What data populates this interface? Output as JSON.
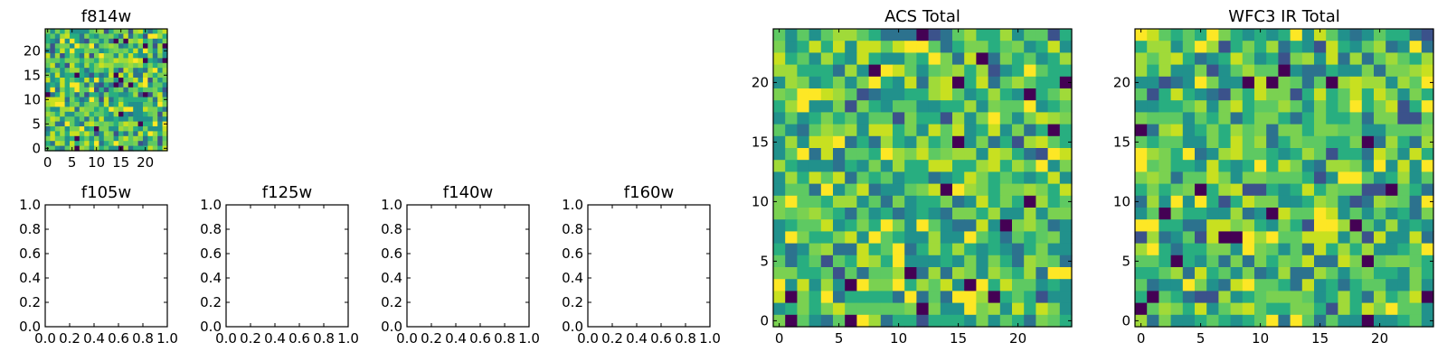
{
  "chart_data": [
    {
      "type": "heatmap",
      "title": "f814w",
      "grid_size": 25,
      "xlim": [
        -0.5,
        24.5
      ],
      "ylim": [
        -0.5,
        24.5
      ],
      "xticks": [
        0,
        5,
        10,
        15,
        20
      ],
      "yticks": [
        0,
        5,
        10,
        15,
        20
      ],
      "colormap": "viridis",
      "values": "random noise (per-pixel values not individually labeled)"
    },
    {
      "type": "heatmap",
      "title": "f105w",
      "xlim": [
        0,
        1
      ],
      "ylim": [
        0,
        1
      ],
      "xticks": [
        "0.0",
        "0.2",
        "0.4",
        "0.6",
        "0.8",
        "1.0"
      ],
      "yticks": [
        "0.0",
        "0.2",
        "0.4",
        "0.6",
        "0.8",
        "1.0"
      ],
      "values": []
    },
    {
      "type": "heatmap",
      "title": "f125w",
      "xlim": [
        0,
        1
      ],
      "ylim": [
        0,
        1
      ],
      "xticks": [
        "0.0",
        "0.2",
        "0.4",
        "0.6",
        "0.8",
        "1.0"
      ],
      "yticks": [
        "0.0",
        "0.2",
        "0.4",
        "0.6",
        "0.8",
        "1.0"
      ],
      "values": []
    },
    {
      "type": "heatmap",
      "title": "f140w",
      "xlim": [
        0,
        1
      ],
      "ylim": [
        0,
        1
      ],
      "xticks": [
        "0.0",
        "0.2",
        "0.4",
        "0.6",
        "0.8",
        "1.0"
      ],
      "yticks": [
        "0.0",
        "0.2",
        "0.4",
        "0.6",
        "0.8",
        "1.0"
      ],
      "values": []
    },
    {
      "type": "heatmap",
      "title": "f160w",
      "xlim": [
        0,
        1
      ],
      "ylim": [
        0,
        1
      ],
      "xticks": [
        "0.0",
        "0.2",
        "0.4",
        "0.6",
        "0.8",
        "1.0"
      ],
      "yticks": [
        "0.0",
        "0.2",
        "0.4",
        "0.6",
        "0.8",
        "1.0"
      ],
      "values": []
    },
    {
      "type": "heatmap",
      "title": "ACS Total",
      "grid_size": 25,
      "xlim": [
        -0.5,
        24.5
      ],
      "ylim": [
        -0.5,
        24.5
      ],
      "xticks": [
        0,
        5,
        10,
        15,
        20
      ],
      "yticks": [
        0,
        5,
        10,
        15,
        20
      ],
      "colormap": "viridis",
      "values": "random noise (per-pixel values not individually labeled)"
    },
    {
      "type": "heatmap",
      "title": "WFC3 IR Total",
      "grid_size": 25,
      "xlim": [
        -0.5,
        24.5
      ],
      "ylim": [
        -0.5,
        24.5
      ],
      "xticks": [
        0,
        5,
        10,
        15,
        20
      ],
      "yticks": [
        0,
        5,
        10,
        15,
        20
      ],
      "colormap": "viridis",
      "values": "random noise (per-pixel values not individually labeled)"
    }
  ],
  "colors": {
    "viridis_dark": "#440154",
    "viridis_blue": "#3b528b",
    "viridis_teal": "#21918c",
    "viridis_green": "#5ec962",
    "viridis_yellow": "#fde725"
  }
}
